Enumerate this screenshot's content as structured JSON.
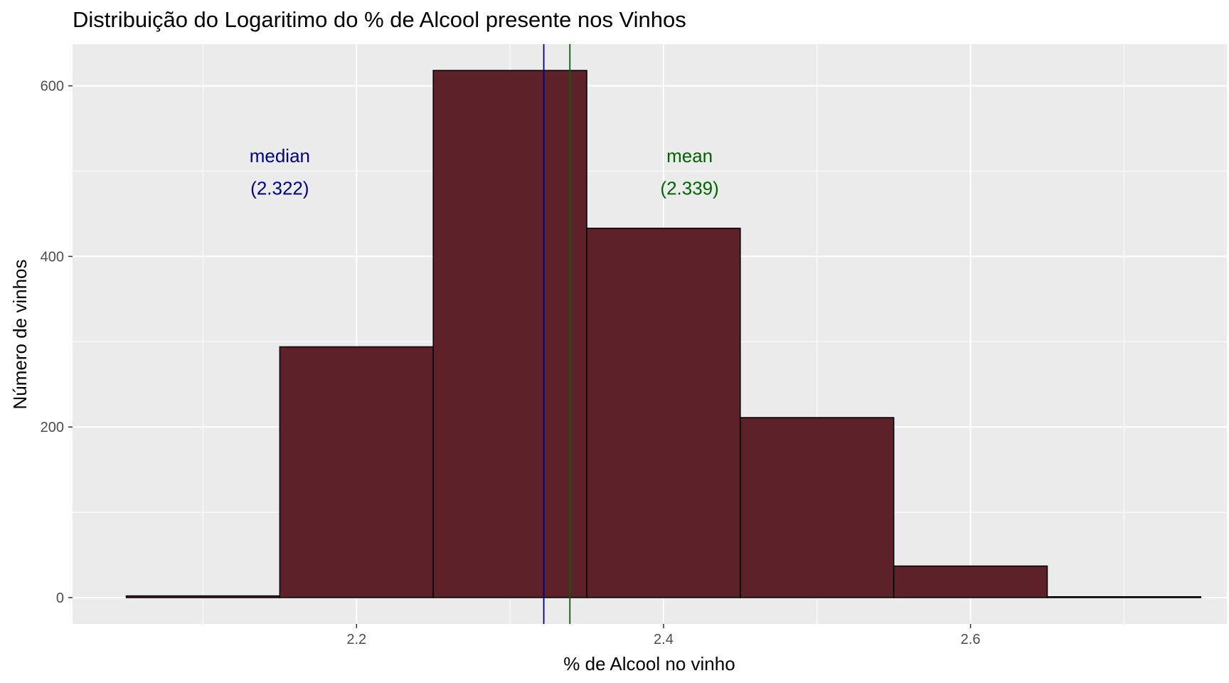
{
  "chart_data": {
    "type": "bar",
    "title": "Distribuição do Logaritimo do % de Alcool presente nos Vinhos",
    "xlabel": "% de Alcool no vinho",
    "ylabel": "Número de vinhos",
    "bins": [
      {
        "from": 2.05,
        "to": 2.15,
        "count": 2
      },
      {
        "from": 2.15,
        "to": 2.25,
        "count": 294
      },
      {
        "from": 2.25,
        "to": 2.35,
        "count": 618
      },
      {
        "from": 2.35,
        "to": 2.45,
        "count": 433
      },
      {
        "from": 2.45,
        "to": 2.55,
        "count": 211
      },
      {
        "from": 2.55,
        "to": 2.65,
        "count": 37
      },
      {
        "from": 2.65,
        "to": 2.75,
        "count": 1
      }
    ],
    "xlim": [
      2.015,
      2.767
    ],
    "ylim": [
      -30.9,
      648.9
    ],
    "x_ticks": [
      2.2,
      2.4,
      2.6
    ],
    "x_tick_labels": [
      "2.2",
      "2.4",
      "2.6"
    ],
    "y_ticks": [
      0,
      200,
      400,
      600
    ],
    "y_tick_labels": [
      "0",
      "200",
      "400",
      "600"
    ],
    "reference_lines": [
      {
        "name": "median",
        "value": 2.322,
        "label": "median",
        "value_label": "(2.322)",
        "color": "#00008b",
        "label_x": 2.15,
        "label_y": 518,
        "value_y": 480
      },
      {
        "name": "mean",
        "value": 2.339,
        "label": "mean",
        "value_label": "(2.339)",
        "color": "#006400",
        "label_x": 2.417,
        "label_y": 518,
        "value_y": 480
      }
    ],
    "grid": true,
    "legend": "none",
    "colors": {
      "bar_fill": "#5c2129",
      "bar_stroke": "#000000",
      "panel": "#ebebeb",
      "grid": "#ffffff"
    }
  }
}
